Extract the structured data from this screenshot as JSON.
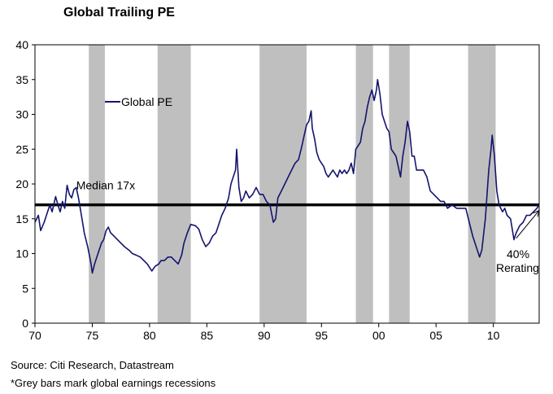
{
  "chart_data": {
    "type": "line",
    "title": "Global Trailing PE",
    "xlabel": "",
    "ylabel": "",
    "xlim": [
      1970,
      2014
    ],
    "ylim": [
      0,
      40
    ],
    "x_tick_values": [
      1970,
      1975,
      1980,
      1985,
      1990,
      1995,
      2000,
      2005,
      2010
    ],
    "x_tick_labels": [
      "70",
      "75",
      "80",
      "85",
      "90",
      "95",
      "00",
      "05",
      "10"
    ],
    "y_ticks": [
      0,
      5,
      10,
      15,
      20,
      25,
      30,
      35,
      40
    ],
    "legend": {
      "label": "Global PE",
      "placement": "upper-left"
    },
    "recessions": [
      {
        "start": 1974.7,
        "end": 1976.1
      },
      {
        "start": 1980.7,
        "end": 1983.6
      },
      {
        "start": 1989.6,
        "end": 1993.7
      },
      {
        "start": 1998.0,
        "end": 1999.5
      },
      {
        "start": 2000.9,
        "end": 2002.7
      },
      {
        "start": 2007.8,
        "end": 2010.2
      }
    ],
    "median": {
      "value": 17,
      "label": "Median 17x"
    },
    "annotations": {
      "rerating_pct": "40%",
      "rerating_word": "Rerating"
    },
    "series": [
      {
        "name": "Global PE",
        "color": "#14146e",
        "points": [
          [
            1970.0,
            14.5
          ],
          [
            1970.3,
            15.5
          ],
          [
            1970.5,
            13.3
          ],
          [
            1970.8,
            14.5
          ],
          [
            1971.0,
            15.5
          ],
          [
            1971.3,
            17.0
          ],
          [
            1971.5,
            16.0
          ],
          [
            1971.8,
            18.2
          ],
          [
            1972.0,
            17.0
          ],
          [
            1972.2,
            16.0
          ],
          [
            1972.4,
            17.5
          ],
          [
            1972.6,
            16.5
          ],
          [
            1972.8,
            19.8
          ],
          [
            1973.0,
            18.5
          ],
          [
            1973.2,
            18.0
          ],
          [
            1973.4,
            19.2
          ],
          [
            1973.6,
            19.5
          ],
          [
            1973.8,
            18.0
          ],
          [
            1974.0,
            16.0
          ],
          [
            1974.3,
            13.0
          ],
          [
            1974.6,
            11.0
          ],
          [
            1974.9,
            8.5
          ],
          [
            1975.0,
            7.2
          ],
          [
            1975.2,
            8.5
          ],
          [
            1975.4,
            9.5
          ],
          [
            1975.6,
            10.5
          ],
          [
            1975.8,
            11.5
          ],
          [
            1976.0,
            12.0
          ],
          [
            1976.2,
            13.3
          ],
          [
            1976.4,
            13.8
          ],
          [
            1976.6,
            13.0
          ],
          [
            1976.9,
            12.5
          ],
          [
            1977.2,
            12.0
          ],
          [
            1977.5,
            11.5
          ],
          [
            1977.8,
            11.0
          ],
          [
            1978.2,
            10.5
          ],
          [
            1978.5,
            10.0
          ],
          [
            1978.8,
            9.8
          ],
          [
            1979.2,
            9.5
          ],
          [
            1979.5,
            9.0
          ],
          [
            1979.8,
            8.5
          ],
          [
            1980.0,
            8.0
          ],
          [
            1980.2,
            7.5
          ],
          [
            1980.5,
            8.2
          ],
          [
            1980.8,
            8.5
          ],
          [
            1981.0,
            9.0
          ],
          [
            1981.3,
            9.0
          ],
          [
            1981.6,
            9.5
          ],
          [
            1981.9,
            9.5
          ],
          [
            1982.2,
            9.0
          ],
          [
            1982.5,
            8.5
          ],
          [
            1982.8,
            9.8
          ],
          [
            1983.0,
            11.5
          ],
          [
            1983.3,
            13.0
          ],
          [
            1983.6,
            14.2
          ],
          [
            1984.0,
            14.0
          ],
          [
            1984.3,
            13.5
          ],
          [
            1984.6,
            12.0
          ],
          [
            1984.9,
            11.0
          ],
          [
            1985.2,
            11.5
          ],
          [
            1985.5,
            12.5
          ],
          [
            1985.8,
            13.0
          ],
          [
            1986.0,
            14.0
          ],
          [
            1986.3,
            15.5
          ],
          [
            1986.6,
            16.5
          ],
          [
            1986.9,
            18.0
          ],
          [
            1987.1,
            20.0
          ],
          [
            1987.3,
            21.0
          ],
          [
            1987.5,
            22.0
          ],
          [
            1987.6,
            25.0
          ],
          [
            1987.8,
            19.5
          ],
          [
            1988.0,
            17.5
          ],
          [
            1988.2,
            18.0
          ],
          [
            1988.4,
            19.0
          ],
          [
            1988.7,
            18.0
          ],
          [
            1989.0,
            18.5
          ],
          [
            1989.3,
            19.5
          ],
          [
            1989.6,
            18.5
          ],
          [
            1989.9,
            18.5
          ],
          [
            1990.2,
            17.5
          ],
          [
            1990.5,
            17.0
          ],
          [
            1990.8,
            14.5
          ],
          [
            1991.0,
            15.0
          ],
          [
            1991.2,
            18.0
          ],
          [
            1991.5,
            19.0
          ],
          [
            1991.8,
            20.0
          ],
          [
            1992.1,
            21.0
          ],
          [
            1992.4,
            22.0
          ],
          [
            1992.7,
            23.0
          ],
          [
            1993.0,
            23.5
          ],
          [
            1993.3,
            25.5
          ],
          [
            1993.5,
            27.0
          ],
          [
            1993.7,
            28.5
          ],
          [
            1993.9,
            29.0
          ],
          [
            1994.1,
            30.5
          ],
          [
            1994.2,
            28.0
          ],
          [
            1994.4,
            26.5
          ],
          [
            1994.6,
            24.5
          ],
          [
            1994.8,
            23.5
          ],
          [
            1995.0,
            23.0
          ],
          [
            1995.2,
            22.5
          ],
          [
            1995.4,
            21.5
          ],
          [
            1995.6,
            21.0
          ],
          [
            1995.8,
            21.5
          ],
          [
            1996.0,
            22.0
          ],
          [
            1996.2,
            21.5
          ],
          [
            1996.4,
            21.0
          ],
          [
            1996.6,
            22.0
          ],
          [
            1996.8,
            21.5
          ],
          [
            1997.0,
            22.0
          ],
          [
            1997.2,
            21.5
          ],
          [
            1997.4,
            22.0
          ],
          [
            1997.6,
            23.0
          ],
          [
            1997.8,
            21.5
          ],
          [
            1998.0,
            25.0
          ],
          [
            1998.2,
            25.5
          ],
          [
            1998.4,
            26.0
          ],
          [
            1998.6,
            28.0
          ],
          [
            1998.8,
            29.0
          ],
          [
            1999.0,
            31.0
          ],
          [
            1999.2,
            32.5
          ],
          [
            1999.4,
            33.5
          ],
          [
            1999.6,
            32.0
          ],
          [
            1999.8,
            33.5
          ],
          [
            1999.9,
            35.0
          ],
          [
            2000.1,
            33.0
          ],
          [
            2000.3,
            30.0
          ],
          [
            2000.5,
            29.0
          ],
          [
            2000.7,
            28.0
          ],
          [
            2000.9,
            27.5
          ],
          [
            2001.1,
            25.0
          ],
          [
            2001.3,
            24.5
          ],
          [
            2001.5,
            24.0
          ],
          [
            2001.7,
            22.5
          ],
          [
            2001.9,
            21.0
          ],
          [
            2002.1,
            24.0
          ],
          [
            2002.3,
            26.0
          ],
          [
            2002.5,
            29.0
          ],
          [
            2002.7,
            27.5
          ],
          [
            2002.9,
            24.0
          ],
          [
            2003.1,
            24.0
          ],
          [
            2003.3,
            22.0
          ],
          [
            2003.6,
            22.0
          ],
          [
            2003.9,
            22.0
          ],
          [
            2004.2,
            21.0
          ],
          [
            2004.5,
            19.0
          ],
          [
            2004.8,
            18.5
          ],
          [
            2005.1,
            18.0
          ],
          [
            2005.4,
            17.5
          ],
          [
            2005.7,
            17.5
          ],
          [
            2006.0,
            16.5
          ],
          [
            2006.4,
            17.0
          ],
          [
            2006.8,
            16.5
          ],
          [
            2007.2,
            16.5
          ],
          [
            2007.6,
            16.5
          ],
          [
            2007.9,
            14.5
          ],
          [
            2008.2,
            12.5
          ],
          [
            2008.5,
            11.0
          ],
          [
            2008.8,
            9.5
          ],
          [
            2009.0,
            10.5
          ],
          [
            2009.3,
            15.0
          ],
          [
            2009.6,
            22.0
          ],
          [
            2009.8,
            25.0
          ],
          [
            2009.9,
            27.0
          ],
          [
            2010.1,
            24.0
          ],
          [
            2010.3,
            19.0
          ],
          [
            2010.5,
            17.0
          ],
          [
            2010.8,
            16.0
          ],
          [
            2011.0,
            16.5
          ],
          [
            2011.2,
            15.5
          ],
          [
            2011.5,
            15.0
          ],
          [
            2011.8,
            12.0
          ],
          [
            2012.0,
            13.0
          ],
          [
            2012.3,
            14.0
          ],
          [
            2012.6,
            14.5
          ],
          [
            2012.9,
            15.5
          ],
          [
            2013.2,
            15.5
          ],
          [
            2013.5,
            16.0
          ],
          [
            2013.8,
            16.5
          ],
          [
            2014.0,
            17.0
          ]
        ]
      }
    ],
    "median_line_color": "#000000",
    "recession_color": "#bfbfbf",
    "arrow_from": [
      2012.0,
      12.2
    ],
    "arrow_to": [
      2014.0,
      16.2
    ]
  },
  "footnotes": {
    "source": "Source: Citi Research, Datastream",
    "note": "*Grey bars mark global earnings recessions"
  }
}
